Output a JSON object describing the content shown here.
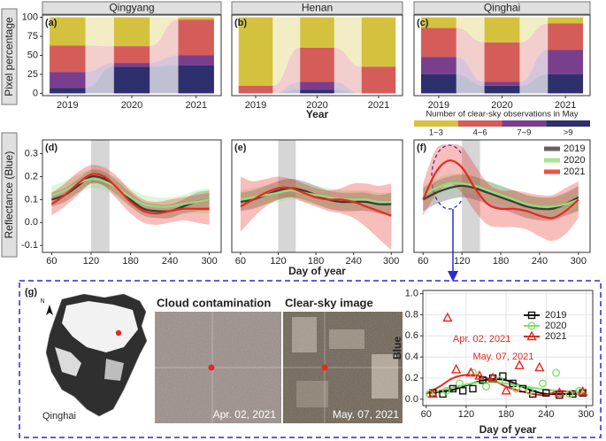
{
  "chart_data": [
    {
      "type": "stacked_bar",
      "title": "Qingyang",
      "label": "(a)",
      "ylabel": "Pixel percentage",
      "categories": [
        "2019",
        "2020",
        "2021"
      ],
      "ylim": [
        -3,
        103
      ],
      "yticks": [
        0,
        25,
        50,
        75,
        100
      ],
      "series": [
        {
          "name": "1~3",
          "color": "#d4c23f",
          "values": [
            37,
            38,
            3
          ]
        },
        {
          "name": "4~6",
          "color": "#d45d5a",
          "values": [
            35,
            22,
            47
          ]
        },
        {
          "name": "7~9",
          "color": "#7a3f8c",
          "values": [
            21,
            5,
            13
          ]
        },
        {
          "name": ">9",
          "color": "#2e2f6d",
          "values": [
            7,
            35,
            37
          ]
        }
      ]
    },
    {
      "type": "stacked_bar",
      "title": "Henan",
      "label": "(b)",
      "xlabel": "Year",
      "categories": [
        "2019",
        "2020",
        "2021"
      ],
      "ylim": [
        -3,
        103
      ],
      "series": [
        {
          "name": "1~3",
          "color": "#d4c23f",
          "values": [
            90,
            40,
            65
          ]
        },
        {
          "name": "4~6",
          "color": "#d45d5a",
          "values": [
            10,
            45,
            35
          ]
        },
        {
          "name": "7~9",
          "color": "#7a3f8c",
          "values": [
            0,
            10,
            0
          ]
        },
        {
          "name": ">9",
          "color": "#2e2f6d",
          "values": [
            0,
            5,
            0
          ]
        }
      ]
    },
    {
      "type": "stacked_bar",
      "title": "Qinghai",
      "label": "(c)",
      "legend_title": "Number of clear-sky observations in May",
      "categories": [
        "2019",
        "2020",
        "2021"
      ],
      "ylim": [
        -3,
        103
      ],
      "series": [
        {
          "name": "1~3",
          "color": "#d4c23f",
          "values": [
            14,
            33,
            8
          ]
        },
        {
          "name": "4~6",
          "color": "#d45d5a",
          "values": [
            38,
            52,
            35
          ]
        },
        {
          "name": "7~9",
          "color": "#7a3f8c",
          "values": [
            23,
            5,
            32
          ]
        },
        {
          "name": ">9",
          "color": "#2e2f6d",
          "values": [
            25,
            10,
            25
          ]
        }
      ]
    },
    {
      "type": "line_band",
      "label": "(d)",
      "ylabel": "Reflectance (Blue)",
      "shade_x": [
        120,
        148
      ],
      "x": [
        60,
        80,
        100,
        120,
        140,
        160,
        180,
        200,
        220,
        240,
        260,
        280,
        300
      ],
      "xlim": [
        46,
        318
      ],
      "xticks": [
        60,
        120,
        180,
        240,
        300
      ],
      "ylim": [
        -0.13,
        0.36
      ],
      "yticks": [
        -0.1,
        {
          "value": 0,
          "label": "0.0"
        },
        0.1,
        0.2,
        0.3
      ],
      "series": [
        {
          "name": "2019",
          "color": "#3a3a3a",
          "values": [
            0.1,
            0.12,
            0.16,
            0.2,
            0.19,
            0.15,
            0.1,
            0.06,
            0.05,
            0.05,
            0.07,
            0.09,
            0.1
          ],
          "lower": [
            0.07,
            0.09,
            0.13,
            0.17,
            0.16,
            0.12,
            0.07,
            0.03,
            0.02,
            0.02,
            0.04,
            0.05,
            0.05
          ],
          "upper": [
            0.13,
            0.15,
            0.19,
            0.23,
            0.22,
            0.18,
            0.13,
            0.09,
            0.08,
            0.08,
            0.1,
            0.13,
            0.14
          ]
        },
        {
          "name": "2020",
          "color": "#8ee07a",
          "values": [
            0.12,
            0.14,
            0.17,
            0.19,
            0.18,
            0.15,
            0.11,
            0.08,
            0.07,
            0.07,
            0.08,
            0.09,
            0.1
          ],
          "lower": [
            0.08,
            0.1,
            0.13,
            0.15,
            0.14,
            0.11,
            0.07,
            0.04,
            0.03,
            0.03,
            0.04,
            0.04,
            0.04
          ],
          "upper": [
            0.16,
            0.18,
            0.21,
            0.23,
            0.22,
            0.19,
            0.15,
            0.12,
            0.11,
            0.11,
            0.12,
            0.14,
            0.15
          ]
        },
        {
          "name": "2021",
          "color": "#e8281e",
          "values": [
            0.08,
            0.12,
            0.17,
            0.21,
            0.2,
            0.15,
            0.09,
            0.05,
            0.04,
            0.05,
            0.06,
            0.06,
            0.06
          ],
          "lower": [
            0.03,
            0.07,
            0.12,
            0.17,
            0.16,
            0.1,
            0.04,
            0.0,
            -0.01,
            0.0,
            0.01,
            0.0,
            -0.01
          ],
          "upper": [
            0.13,
            0.17,
            0.22,
            0.25,
            0.24,
            0.2,
            0.14,
            0.1,
            0.09,
            0.1,
            0.11,
            0.12,
            0.13
          ]
        }
      ]
    },
    {
      "type": "line_band",
      "label": "(e)",
      "xlabel": "Day of year",
      "shade_x": [
        120,
        148
      ],
      "x": [
        60,
        80,
        100,
        120,
        140,
        160,
        180,
        200,
        220,
        240,
        260,
        280,
        300
      ],
      "xlim": [
        46,
        318
      ],
      "xticks": [
        60,
        120,
        180,
        240,
        300
      ],
      "ylim": [
        -0.13,
        0.36
      ],
      "series": [
        {
          "name": "2019",
          "color": "#3a3a3a",
          "values": [
            0.09,
            0.1,
            0.12,
            0.14,
            0.15,
            0.14,
            0.12,
            0.1,
            0.09,
            0.09,
            0.09,
            0.08,
            0.08
          ],
          "lower": [
            0.05,
            0.06,
            0.08,
            0.1,
            0.11,
            0.1,
            0.08,
            0.06,
            0.05,
            0.05,
            0.05,
            0.04,
            0.03
          ],
          "upper": [
            0.13,
            0.14,
            0.16,
            0.18,
            0.19,
            0.18,
            0.16,
            0.14,
            0.13,
            0.13,
            0.13,
            0.12,
            0.13
          ]
        },
        {
          "name": "2020",
          "color": "#8ee07a",
          "values": [
            0.1,
            0.11,
            0.12,
            0.13,
            0.14,
            0.13,
            0.12,
            0.11,
            0.1,
            0.1,
            0.1,
            0.09,
            0.09
          ],
          "lower": [
            0.06,
            0.07,
            0.08,
            0.09,
            0.1,
            0.09,
            0.08,
            0.07,
            0.06,
            0.06,
            0.06,
            0.05,
            0.05
          ],
          "upper": [
            0.14,
            0.15,
            0.16,
            0.17,
            0.18,
            0.17,
            0.16,
            0.15,
            0.14,
            0.14,
            0.14,
            0.13,
            0.13
          ]
        },
        {
          "name": "2021",
          "color": "#e8281e",
          "values": [
            0.07,
            0.1,
            0.13,
            0.15,
            0.15,
            0.13,
            0.11,
            0.1,
            0.1,
            0.09,
            0.07,
            0.05,
            0.03
          ],
          "lower": [
            -0.04,
            0.02,
            0.07,
            0.1,
            0.11,
            0.09,
            0.07,
            0.05,
            0.04,
            0.02,
            -0.02,
            -0.07,
            -0.12
          ],
          "upper": [
            0.2,
            0.18,
            0.19,
            0.2,
            0.19,
            0.17,
            0.15,
            0.14,
            0.15,
            0.17,
            0.17,
            0.16,
            0.17
          ]
        }
      ]
    },
    {
      "type": "line_band",
      "label": "(f)",
      "legend": "top-right",
      "shade_x": [
        120,
        148
      ],
      "x": [
        60,
        80,
        100,
        120,
        140,
        160,
        180,
        200,
        220,
        240,
        260,
        280,
        300
      ],
      "xlim": [
        46,
        318
      ],
      "xticks": [
        60,
        120,
        180,
        240,
        300
      ],
      "ylim": [
        -0.13,
        0.36
      ],
      "series": [
        {
          "name": "2019",
          "color": "#3a3a3a",
          "values": [
            0.1,
            0.13,
            0.15,
            0.16,
            0.15,
            0.13,
            0.11,
            0.09,
            0.07,
            0.06,
            0.06,
            0.08,
            0.11
          ],
          "lower": [
            0.05,
            0.08,
            0.1,
            0.11,
            0.1,
            0.08,
            0.06,
            0.04,
            0.02,
            0.01,
            0.01,
            0.03,
            0.05
          ],
          "upper": [
            0.15,
            0.18,
            0.2,
            0.21,
            0.2,
            0.18,
            0.16,
            0.14,
            0.12,
            0.11,
            0.11,
            0.13,
            0.16
          ]
        },
        {
          "name": "2020",
          "color": "#8ee07a",
          "values": [
            0.12,
            0.15,
            0.17,
            0.17,
            0.16,
            0.14,
            0.12,
            0.1,
            0.08,
            0.07,
            0.07,
            0.08,
            0.1
          ],
          "lower": [
            0.08,
            0.11,
            0.13,
            0.13,
            0.12,
            0.1,
            0.08,
            0.06,
            0.04,
            0.03,
            0.03,
            0.04,
            0.05
          ],
          "upper": [
            0.16,
            0.19,
            0.21,
            0.21,
            0.2,
            0.18,
            0.16,
            0.14,
            0.12,
            0.11,
            0.11,
            0.12,
            0.15
          ]
        },
        {
          "name": "2021",
          "color": "#e8281e",
          "values": [
            0.1,
            0.22,
            0.27,
            0.24,
            0.15,
            0.08,
            0.06,
            0.06,
            0.05,
            0.03,
            0.02,
            0.05,
            0.1
          ],
          "lower": [
            0.03,
            0.12,
            0.17,
            0.13,
            0.05,
            -0.01,
            -0.02,
            -0.02,
            -0.03,
            -0.06,
            -0.08,
            -0.05,
            0.02
          ],
          "upper": [
            0.17,
            0.32,
            0.34,
            0.33,
            0.25,
            0.17,
            0.14,
            0.14,
            0.13,
            0.12,
            0.12,
            0.15,
            0.18
          ]
        }
      ]
    },
    {
      "type": "scatter",
      "xlabel": "Day of year",
      "ylabel": "Blue",
      "grid": true,
      "legend": "top-right",
      "xlim": [
        55,
        310
      ],
      "xticks": [
        60,
        120,
        180,
        240,
        300
      ],
      "ylim": [
        -0.06,
        1.03
      ],
      "yticks": [
        {
          "value": 0,
          "label": "0.0"
        },
        0.2,
        0.4,
        0.6,
        0.8,
        {
          "value": 1,
          "label": "1.0"
        }
      ],
      "fit_x": [
        60,
        80,
        100,
        120,
        140,
        160,
        180,
        200,
        220,
        240,
        260,
        280,
        300
      ],
      "annotations": [
        "Apr. 02, 2021",
        "May. 07, 2021"
      ],
      "series": [
        {
          "name": "2019",
          "color": "#111111",
          "marker": "square",
          "x": [
            70,
            85,
            100,
            115,
            130,
            145,
            160,
            175,
            190,
            205,
            220,
            240,
            260,
            280,
            295
          ],
          "values": [
            0.06,
            0.05,
            0.1,
            0.08,
            0.1,
            0.18,
            0.2,
            0.22,
            0.15,
            0.1,
            0.05,
            0.06,
            0.04,
            0.05,
            0.06
          ],
          "fit": [
            0.06,
            0.07,
            0.09,
            0.13,
            0.17,
            0.19,
            0.18,
            0.13,
            0.08,
            0.05,
            0.05,
            0.05,
            0.06
          ]
        },
        {
          "name": "2020",
          "color": "#7fe06a",
          "marker": "circle",
          "x": [
            65,
            90,
            110,
            130,
            150,
            170,
            195,
            215,
            235,
            255,
            275,
            290
          ],
          "values": [
            0.05,
            0.08,
            0.15,
            0.25,
            0.12,
            0.18,
            0.1,
            0.08,
            0.15,
            0.25,
            0.05,
            0.08
          ],
          "fit": [
            0.06,
            0.08,
            0.11,
            0.14,
            0.16,
            0.16,
            0.15,
            0.13,
            0.11,
            0.09,
            0.08,
            0.07,
            0.07
          ]
        },
        {
          "name": "2021",
          "color": "#e8281e",
          "marker": "triangle",
          "x": [
            70,
            92,
            105,
            127,
            140,
            160,
            180,
            200,
            230,
            260,
            295
          ],
          "values": [
            0.05,
            0.77,
            0.28,
            0.25,
            0.22,
            0.2,
            0.08,
            0.32,
            0.3,
            0.06,
            0.07
          ],
          "fit": [
            0.05,
            0.12,
            0.2,
            0.23,
            0.22,
            0.18,
            0.12,
            0.08,
            0.05,
            0.04,
            0.08,
            0.06,
            0.05
          ]
        }
      ]
    }
  ],
  "panel_g": {
    "label": "(g)",
    "north": "N",
    "map_label": "Qinghai",
    "images": [
      {
        "title": "Cloud contamination",
        "date": "Apr. 02, 2021"
      },
      {
        "title": "Clear-sky image",
        "date": "May. 07, 2021"
      }
    ]
  }
}
